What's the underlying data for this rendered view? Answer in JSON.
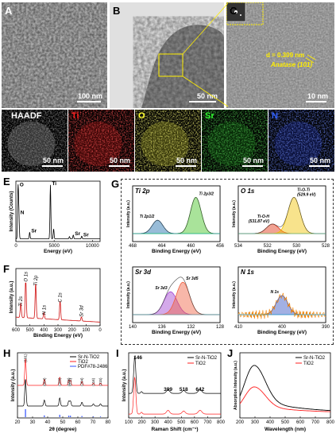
{
  "panels": {
    "A": {
      "label": "A",
      "scale": "100 nm"
    },
    "B": {
      "label": "B",
      "scale": "50 nm"
    },
    "C": {
      "label": "C",
      "scale": "10 nm",
      "d_spacing": "d = 0.309 nm",
      "phase": "Anatase (101)"
    },
    "D": {
      "label": "D",
      "maps": [
        {
          "name": "HAADF",
          "scale": "50 nm",
          "color": "#ffffff",
          "bg": "#3a3a3a"
        },
        {
          "name": "Ti",
          "scale": "50 nm",
          "color": "#ff2020",
          "bg": "#b01010"
        },
        {
          "name": "O",
          "scale": "50 nm",
          "color": "#ffff30",
          "bg": "#a0a020"
        },
        {
          "name": "Sr",
          "scale": "50 nm",
          "color": "#30ff30",
          "bg": "#107010"
        },
        {
          "name": "N",
          "scale": "50 nm",
          "color": "#3060ff",
          "bg": "#1a2aa0"
        }
      ]
    },
    "E": {
      "label": "E"
    },
    "F": {
      "label": "F"
    },
    "G": {
      "label": "G"
    },
    "H": {
      "label": "H"
    },
    "I": {
      "label": "I"
    },
    "J": {
      "label": "J"
    }
  },
  "chart_data": [
    {
      "id": "E",
      "type": "line",
      "xlabel": "Energy (eV)",
      "ylabel": "Intensity (Counts)",
      "xticks": [
        "0",
        "5000",
        "10000"
      ],
      "xlim": [
        0,
        11000
      ],
      "peaks": [
        {
          "x": 280,
          "y": 0.95,
          "label": "O",
          "color": "#c8b400"
        },
        {
          "x": 390,
          "y": 0.45,
          "label": "N",
          "color": "#1030c0"
        },
        {
          "x": 1800,
          "y": 0.12,
          "label": "Sr",
          "color": "#10a010"
        },
        {
          "x": 4510,
          "y": 0.97,
          "label": "Ti",
          "color": "#d01010"
        },
        {
          "x": 4930,
          "y": 0.18,
          "label": "",
          "color": "#000"
        },
        {
          "x": 7000,
          "y": 0.04,
          "label": "",
          "color": "#000"
        },
        {
          "x": 7500,
          "y": 0.07,
          "label": "Sr",
          "color": "#10a010"
        },
        {
          "x": 8600,
          "y": 0.05,
          "label": "Sr",
          "color": "#10a010"
        }
      ]
    },
    {
      "id": "F",
      "type": "line",
      "xlabel": "Binding Energy (eV)",
      "ylabel": "Intensity (a.u.)",
      "xticks": [
        "600",
        "500",
        "400",
        "300",
        "200",
        "100",
        "0"
      ],
      "xlim": [
        600,
        0
      ],
      "peaks": [
        {
          "x": 530,
          "y": 0.95,
          "label": "O 1s"
        },
        {
          "x": 459,
          "y": 0.85,
          "label": "Ti 2p"
        },
        {
          "x": 565,
          "y": 0.35,
          "label": "Ti 2s"
        },
        {
          "x": 400,
          "y": 0.15,
          "label": "N 1s"
        },
        {
          "x": 285,
          "y": 0.45,
          "label": "C 1s"
        },
        {
          "x": 133,
          "y": 0.1,
          "label": "Sr 3d"
        }
      ]
    },
    {
      "id": "G-Ti2p",
      "type": "line",
      "title": "Ti 2p",
      "xlabel": "Binding Energy (eV)",
      "ylabel": "Intensity (a.u.)",
      "xticks": [
        "468",
        "464",
        "460",
        "456"
      ],
      "xlim": [
        468,
        455
      ],
      "peaks": [
        {
          "x": 464.3,
          "y": 0.35,
          "label": "Ti 2p1/2",
          "color": "#1a6aa8"
        },
        {
          "x": 458.6,
          "y": 0.95,
          "label": "Ti 2p3/2",
          "color": "#40c020"
        }
      ]
    },
    {
      "id": "G-O1s",
      "type": "line",
      "title": "O 1s",
      "xlabel": "Binding Energy (eV)",
      "ylabel": "Intensity (a.u.)",
      "xticks": [
        "534",
        "532",
        "530",
        "528"
      ],
      "xlim": [
        535,
        527
      ],
      "peaks": [
        {
          "x": 531.87,
          "y": 0.25,
          "label": "Ti-O-H (531.87 eV)",
          "color": "#e03010"
        },
        {
          "x": 529.9,
          "y": 0.95,
          "label": "Ti-O-Ti (529.9 eV)",
          "color": "#f0c000"
        }
      ]
    },
    {
      "id": "G-Sr3d",
      "type": "line",
      "title": "Sr 3d",
      "xlabel": "Binding Energy (eV)",
      "ylabel": "Intensity (a.u.)",
      "xticks": [
        "140",
        "136",
        "132",
        "128"
      ],
      "xlim": [
        140,
        128
      ],
      "peaks": [
        {
          "x": 134.8,
          "y": 0.6,
          "label": "Sr 3d3",
          "color": "#a040d0"
        },
        {
          "x": 133.1,
          "y": 0.85,
          "label": "Sr 3d5",
          "color": "#f06040"
        }
      ]
    },
    {
      "id": "G-N1s",
      "type": "line",
      "title": "N 1s",
      "xlabel": "Binding Energy (eV)",
      "ylabel": "Intensity (a.u.)",
      "xticks": [
        "410",
        "400",
        "390"
      ],
      "xlim": [
        412,
        388
      ],
      "peaks": [
        {
          "x": 400,
          "y": 0.5,
          "label": "N 1s",
          "color": "#3050c0"
        }
      ]
    },
    {
      "id": "H",
      "type": "line",
      "xlabel": "2θ (degree)",
      "ylabel": "Intensity (a.u.)",
      "xticks": [
        "20",
        "30",
        "40",
        "50",
        "60",
        "70",
        "80"
      ],
      "xlim": [
        20,
        80
      ],
      "series": [
        {
          "name": "Sr-N-TiO2",
          "color": "#000000"
        },
        {
          "name": "TiO2",
          "color": "#ff2020"
        },
        {
          "name": "PDF#78-2486",
          "color": "#3050ff"
        }
      ],
      "peak_labels": [
        {
          "x": 25.3,
          "label": "(101)"
        },
        {
          "x": 37.8,
          "label": "(004)"
        },
        {
          "x": 48.0,
          "label": "(200)"
        },
        {
          "x": 54.0,
          "label": "(105)"
        },
        {
          "x": 55.1,
          "label": "(211)"
        },
        {
          "x": 62.7,
          "label": "(204)"
        },
        {
          "x": 70.3,
          "label": "(116)"
        },
        {
          "x": 75.0,
          "label": "(215)"
        }
      ]
    },
    {
      "id": "I",
      "type": "line",
      "xlabel": "Raman Shift (cm⁻¹)",
      "ylabel": "Intensity (a.u.)",
      "xticks": [
        "100",
        "200",
        "300",
        "400",
        "500",
        "600",
        "700",
        "800"
      ],
      "xlim": [
        100,
        800
      ],
      "series": [
        {
          "name": "Sr-N-TiO2",
          "color": "#000000"
        },
        {
          "name": "TiO2",
          "color": "#ff2020"
        }
      ],
      "peak_labels": [
        {
          "x": 146,
          "label": "146"
        },
        {
          "x": 399,
          "label": "399"
        },
        {
          "x": 518,
          "label": "518"
        },
        {
          "x": 642,
          "label": "642"
        }
      ]
    },
    {
      "id": "J",
      "type": "line",
      "xlabel": "Wavelength (nm)",
      "ylabel": "Absorption Intensity (a.u.)",
      "xticks": [
        "200",
        "300",
        "400",
        "500",
        "600",
        "700",
        "800"
      ],
      "xlim": [
        200,
        800
      ],
      "series": [
        {
          "name": "Sr-N-TiO2",
          "color": "#000000"
        },
        {
          "name": "TiO2",
          "color": "#ff2020"
        }
      ]
    }
  ]
}
